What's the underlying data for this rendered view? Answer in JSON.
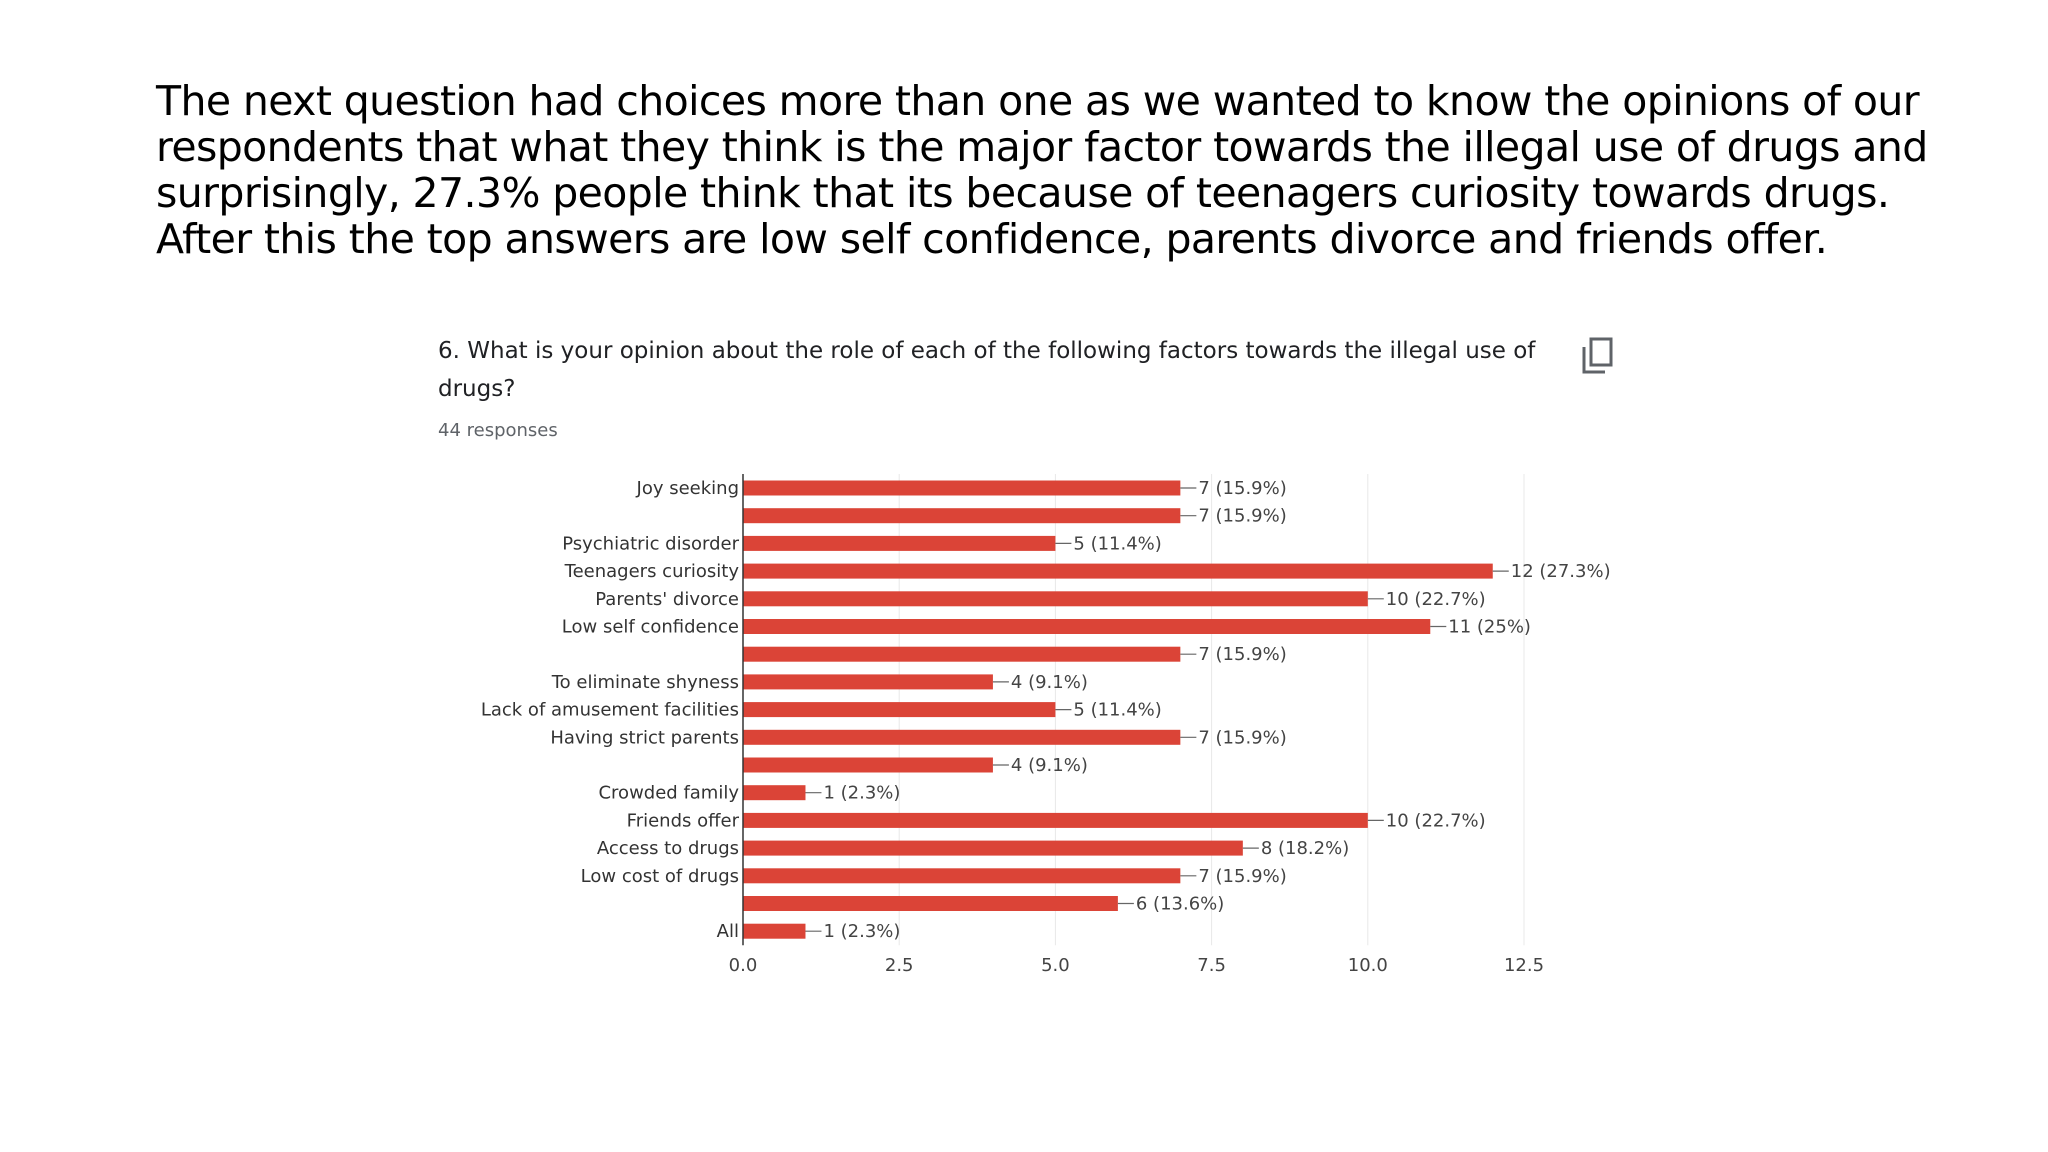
{
  "intro_text": "The next question had choices more than one as we wanted to know the opinions of our respondents that what they think is the major factor towards the illegal use of drugs and surprisingly, 27.3% people think that its because of teenagers curiosity towards drugs. After this the top answers are low self confidence, parents divorce and friends offer.",
  "question": {
    "title": "6. What is your opinion about the role of each of the following factors towards the illegal use of drugs?",
    "responses": "44 responses",
    "copy_icon": "copy-icon"
  },
  "chart_data": {
    "type": "bar",
    "orientation": "horizontal",
    "categories": [
      "Joy seeking",
      "",
      "Psychiatric disorder",
      "Teenagers curiosity",
      "Parents' divorce",
      "Low self confidence",
      "",
      "To eliminate shyness",
      "Lack of amusement facilities",
      "Having strict parents",
      "",
      "Crowded family",
      "Friends offer",
      "Access to drugs",
      "Low cost of drugs",
      "",
      "All"
    ],
    "values": [
      7,
      7,
      5,
      12,
      10,
      11,
      7,
      4,
      5,
      7,
      4,
      1,
      10,
      8,
      7,
      6,
      1
    ],
    "data_labels": [
      "7 (15.9%)",
      "7 (15.9%)",
      "5 (11.4%)",
      "12 (27.3%)",
      "10 (22.7%)",
      "11 (25%)",
      "7 (15.9%)",
      "4 (9.1%)",
      "5 (11.4%)",
      "7 (15.9%)",
      "4 (9.1%)",
      "1 (2.3%)",
      "10 (22.7%)",
      "8 (18.2%)",
      "7 (15.9%)",
      "6 (13.6%)",
      "1 (2.3%)"
    ],
    "xlim": [
      0,
      12.5
    ],
    "xticks": [
      "0.0",
      "2.5",
      "5.0",
      "7.5",
      "10.0",
      "12.5"
    ],
    "bar_color": "#db4437",
    "grid": true
  }
}
